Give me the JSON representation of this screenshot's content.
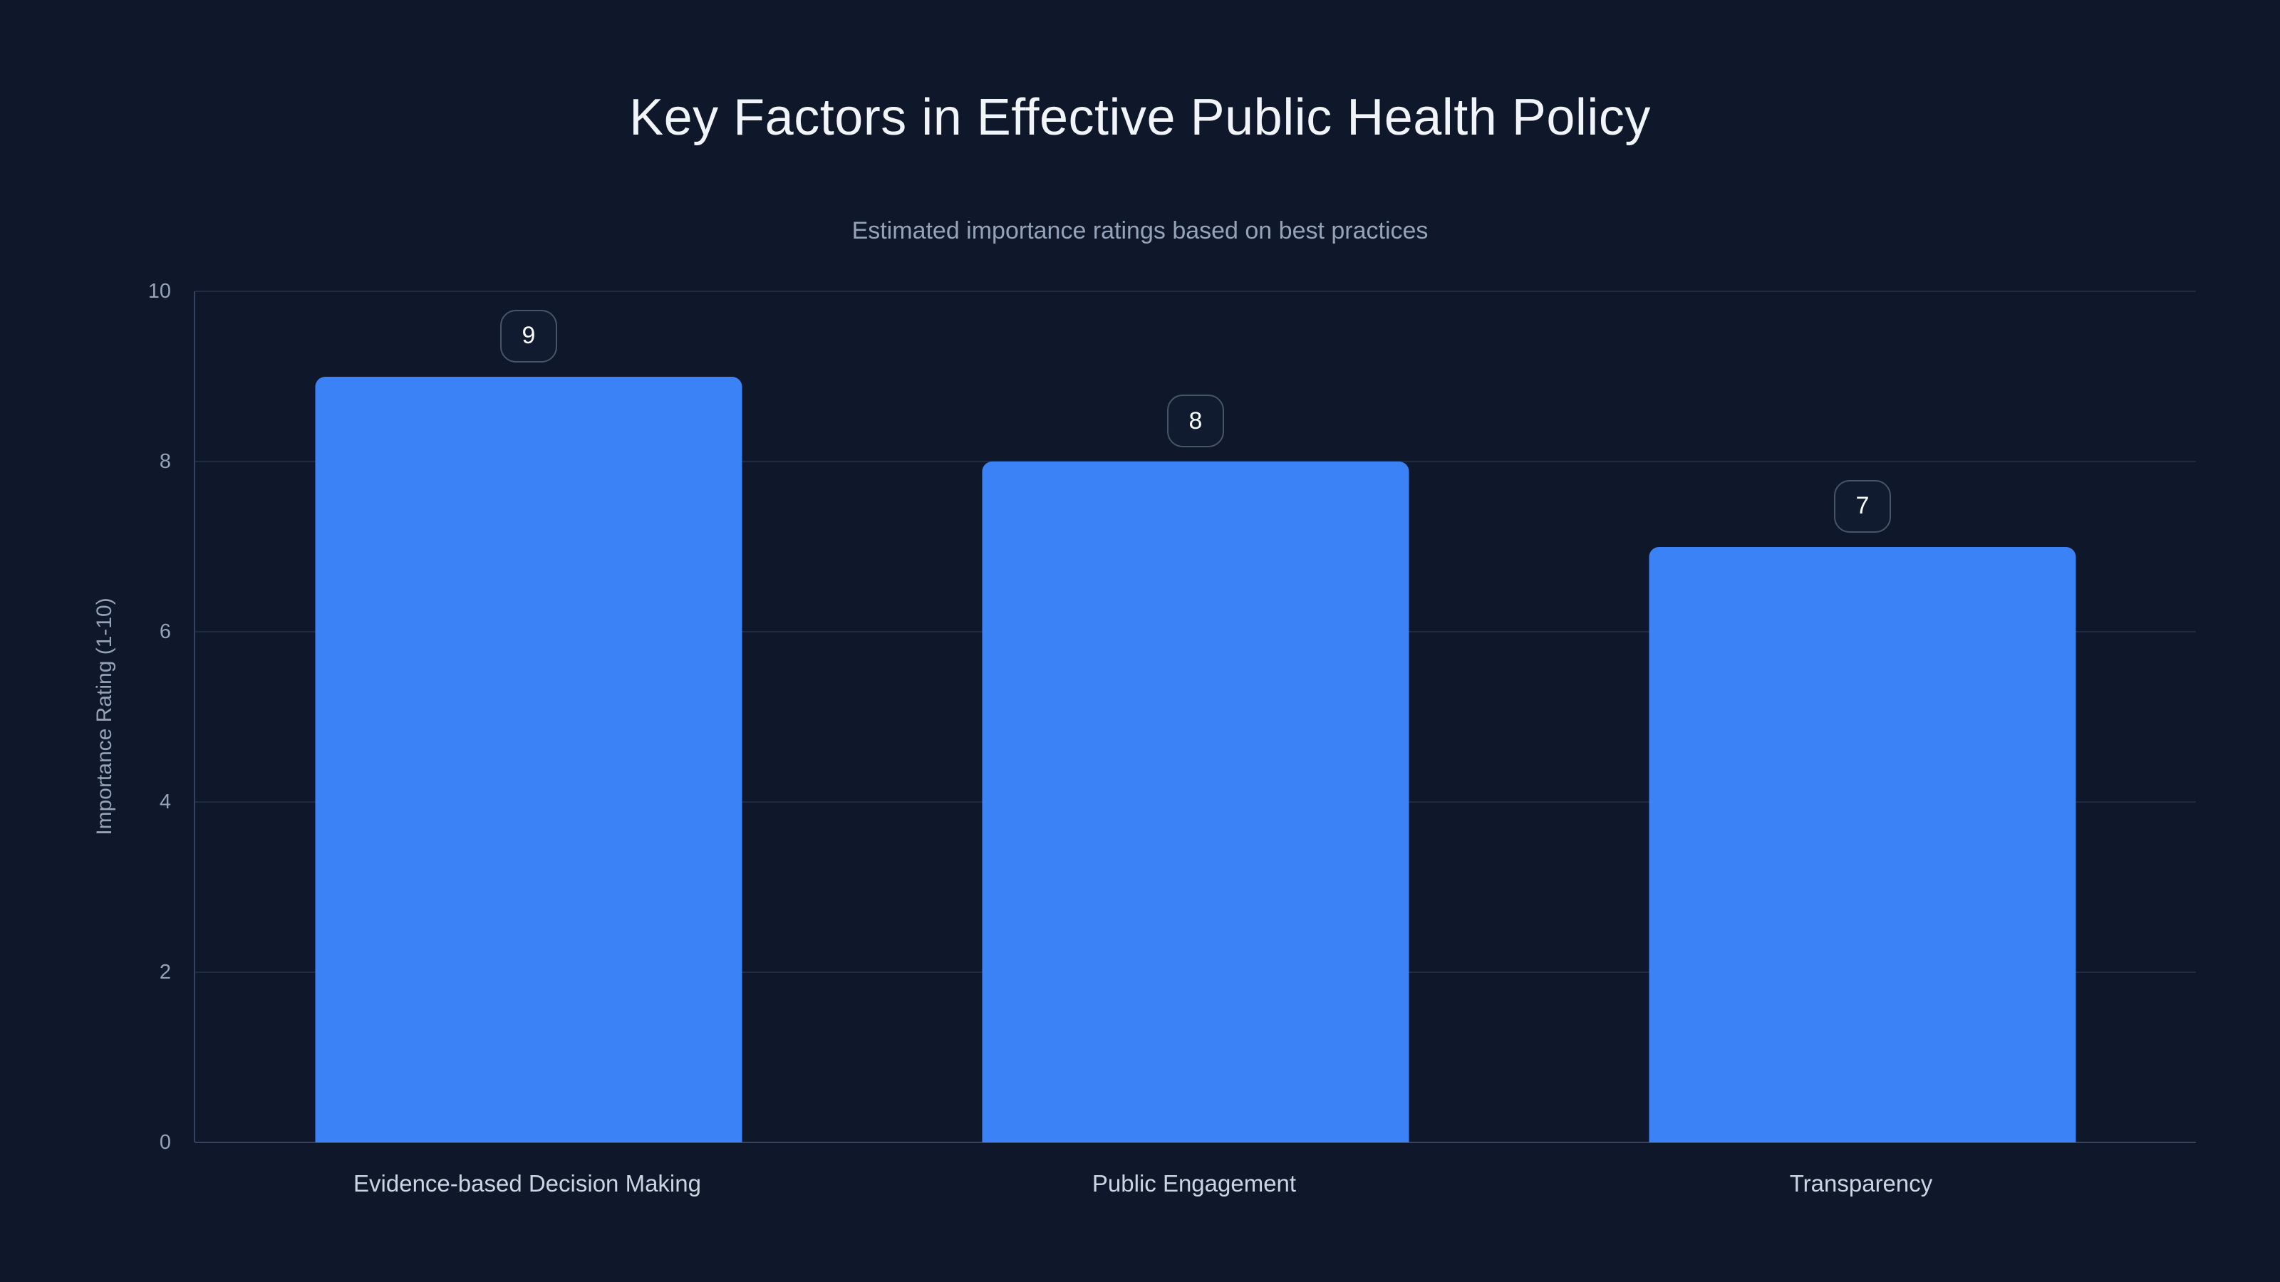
{
  "chart_data": {
    "type": "bar",
    "title": "Key Factors in Effective Public Health Policy",
    "subtitle": "Estimated importance ratings based on best practices",
    "ylabel": "Importance Rating (1-10)",
    "categories": [
      "Evidence-based Decision Making",
      "Public Engagement",
      "Transparency"
    ],
    "values": [
      9,
      8,
      7
    ],
    "value_labels": [
      "9",
      "8",
      "7"
    ],
    "ylim": [
      0,
      10
    ],
    "yticks": [
      "0",
      "2",
      "4",
      "6",
      "8",
      "10"
    ],
    "grid": true,
    "legend": false
  },
  "colors": {
    "background": "#0f172a",
    "bar": "#3b82f6",
    "gridline": "#1f2b42",
    "axis_line": "#36435e",
    "title_text": "#f1f5f9",
    "subtitle_text": "#94a3b8",
    "tick_text": "#94a3b8",
    "category_text": "#cbd5e1",
    "badge_border": "#475569",
    "badge_background": "#111b30",
    "badge_text": "#f8fafc"
  }
}
